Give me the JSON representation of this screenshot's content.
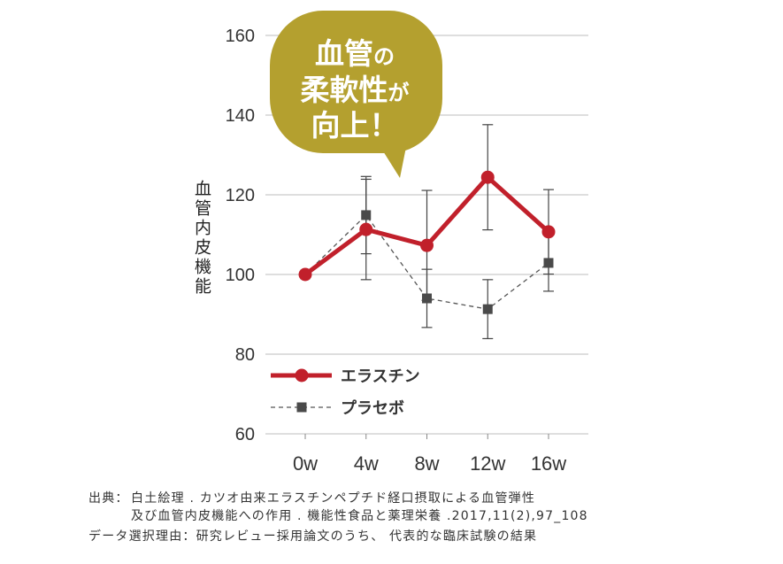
{
  "chart_data": {
    "type": "line",
    "categories": [
      "0w",
      "4w",
      "8w",
      "12w",
      "16w"
    ],
    "xlabel": "",
    "ylabel": "血管内皮機能",
    "ylim": [
      60,
      160
    ],
    "yticks": [
      60,
      80,
      100,
      120,
      140,
      160
    ],
    "grid": true,
    "legend": "bottom-left",
    "series": [
      {
        "name": "エラスチン",
        "values": [
          100,
          111.3,
          107.3,
          124.4,
          110.7
        ],
        "errors": [
          0,
          12.6,
          13.8,
          13.2,
          10.6
        ],
        "color": "#c1202b",
        "line_style": "solid",
        "marker": "circle"
      },
      {
        "name": "プラセボ",
        "values": [
          100,
          114.9,
          94.0,
          91.3,
          102.9
        ],
        "errors": [
          0,
          9.7,
          7.3,
          7.4,
          7.1
        ],
        "color": "#4a4a4a",
        "line_style": "dashed",
        "marker": "square"
      }
    ],
    "annotation": {
      "lines": [
        "血管の",
        "柔軟性が",
        "向上！"
      ],
      "color": "#b4a02f",
      "text_color": "#ffffff"
    }
  },
  "footer": {
    "source_label": "出典：",
    "source_lines": [
      "白土絵理 . カツオ由来エラスチンペプチド経口摂取による血管弾性",
      "及び血管内皮機能への作用 . 機能性食品と薬理栄養 .2017,11(2),97_108"
    ],
    "selection_reason": "データ選択理由：研究レビュー採用論文のうち、 代表的な臨床試験の結果"
  }
}
